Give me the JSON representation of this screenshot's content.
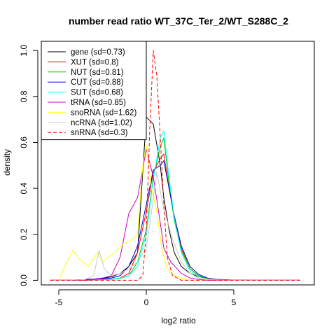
{
  "chart_data": {
    "type": "line",
    "title": "number read ratio WT_37C_Ter_2/WT_S288C_2",
    "xlabel": "log2 ratio",
    "ylabel": "density",
    "xlim": [
      -6,
      9.6
    ],
    "ylim": [
      -0.02,
      1.04
    ],
    "x_ticks": [
      -5,
      0,
      5
    ],
    "y_ticks": [
      0.0,
      0.2,
      0.4,
      0.6,
      0.8,
      1.0
    ],
    "x_tick_labels": [
      "-5",
      "0",
      "5"
    ],
    "y_tick_labels": [
      "0.0",
      "0.2",
      "0.4",
      "0.6",
      "0.8",
      "1.0"
    ],
    "legend_position": "top-left",
    "grid": false,
    "series": [
      {
        "name": "gene (sd=0.73)",
        "color": "#000000",
        "dash": "none",
        "x": [
          -5.5,
          -4.5,
          -3.5,
          -2.5,
          -2.0,
          -1.5,
          -1.0,
          -0.5,
          0.0,
          0.4,
          0.8,
          1.0,
          1.3,
          1.6,
          2.0,
          2.5,
          3.0,
          3.5,
          4.0,
          5.0,
          6.0,
          7.0,
          8.0,
          8.8
        ],
        "y": [
          0,
          0,
          0.003,
          0.008,
          0.015,
          0.03,
          0.06,
          0.12,
          0.71,
          0.68,
          0.5,
          0.36,
          0.22,
          0.12,
          0.06,
          0.03,
          0.015,
          0.008,
          0.004,
          0.001,
          0,
          0,
          0,
          0
        ]
      },
      {
        "name": "XUT (sd=0.8)",
        "color": "#ff0000",
        "dash": "none",
        "x": [
          -5.5,
          -4.5,
          -3.5,
          -2.5,
          -2.0,
          -1.5,
          -1.0,
          -0.5,
          0.0,
          0.4,
          0.8,
          1.0,
          1.3,
          1.6,
          2.0,
          2.5,
          3.0,
          3.5,
          4.0,
          5.0,
          6.0,
          7.0,
          8.0,
          8.8
        ],
        "y": [
          0,
          0,
          0,
          0.002,
          0.005,
          0.01,
          0.03,
          0.12,
          0.3,
          0.47,
          0.53,
          0.55,
          0.4,
          0.28,
          0.14,
          0.05,
          0.02,
          0.008,
          0.003,
          0.001,
          0,
          0,
          0,
          0
        ]
      },
      {
        "name": "NUT (sd=0.81)",
        "color": "#00cc00",
        "dash": "none",
        "x": [
          -5.5,
          -4.5,
          -3.5,
          -2.5,
          -2.0,
          -1.5,
          -1.0,
          -0.5,
          0.0,
          0.4,
          0.8,
          1.0,
          1.3,
          1.6,
          2.0,
          2.5,
          3.0,
          3.5,
          4.0,
          5.0,
          6.0,
          7.0,
          8.0,
          8.8
        ],
        "y": [
          0,
          0,
          0,
          0.002,
          0.004,
          0.008,
          0.02,
          0.08,
          0.22,
          0.45,
          0.58,
          0.62,
          0.42,
          0.26,
          0.13,
          0.05,
          0.02,
          0.008,
          0.003,
          0.001,
          0,
          0,
          0,
          0
        ]
      },
      {
        "name": "CUT (sd=0.88)",
        "color": "#0000cc",
        "dash": "none",
        "x": [
          -5.5,
          -4.5,
          -3.5,
          -2.5,
          -2.0,
          -1.5,
          -1.0,
          -0.5,
          0.0,
          0.4,
          0.8,
          1.0,
          1.3,
          1.6,
          2.0,
          2.5,
          3.0,
          3.5,
          4.0,
          5.0,
          6.0,
          7.0,
          8.0,
          8.8
        ],
        "y": [
          0,
          0,
          0.003,
          0.006,
          0.01,
          0.02,
          0.06,
          0.15,
          0.33,
          0.48,
          0.5,
          0.52,
          0.4,
          0.28,
          0.15,
          0.06,
          0.025,
          0.01,
          0.004,
          0.001,
          0,
          0,
          0,
          0
        ]
      },
      {
        "name": "SUT (sd=0.68)",
        "color": "#00ffff",
        "dash": "none",
        "x": [
          -5.5,
          -4.5,
          -3.5,
          -2.5,
          -2.0,
          -1.5,
          -1.0,
          -0.5,
          0.0,
          0.4,
          0.8,
          1.0,
          1.3,
          1.6,
          2.0,
          2.5,
          3.0,
          3.5,
          4.0,
          5.0,
          6.0,
          7.0,
          8.0,
          8.8
        ],
        "y": [
          0,
          0,
          0,
          0.002,
          0.005,
          0.01,
          0.02,
          0.06,
          0.2,
          0.44,
          0.62,
          0.65,
          0.45,
          0.27,
          0.12,
          0.04,
          0.015,
          0.005,
          0.002,
          0,
          0,
          0,
          0,
          0
        ]
      },
      {
        "name": "tRNA (sd=0.85)",
        "color": "#cc00cc",
        "dash": "none",
        "x": [
          -5.5,
          -4.5,
          -3.5,
          -3.0,
          -2.5,
          -2.0,
          -1.5,
          -1.0,
          -0.5,
          0.0,
          0.4,
          0.8,
          1.0,
          1.4,
          2.0,
          2.5,
          3.0,
          3.5,
          4.0,
          5.0,
          6.0,
          7.0,
          8.0,
          8.8
        ],
        "y": [
          0,
          0,
          0,
          0.005,
          0.01,
          0.02,
          0.1,
          0.29,
          0.36,
          0.57,
          0.45,
          0.25,
          0.14,
          0.08,
          0.03,
          0.01,
          0.004,
          0,
          0,
          0,
          0,
          0,
          0,
          0
        ]
      },
      {
        "name": "snoRNA (sd=1.62)",
        "color": "#ffff00",
        "dash": "none",
        "x": [
          -5.0,
          -4.6,
          -4.2,
          -3.8,
          -3.3,
          -2.8,
          -2.5,
          -2.2,
          -1.8,
          -1.3,
          -0.9,
          -0.5,
          -0.2,
          0.0,
          0.3,
          0.6,
          0.9,
          1.2,
          1.6,
          2.0,
          2.5,
          3.0
        ],
        "y": [
          0,
          0.07,
          0.13,
          0.09,
          0.06,
          0.12,
          0.08,
          0.1,
          0.12,
          0.16,
          0.17,
          0.2,
          0.5,
          0.59,
          0.4,
          0.3,
          0.13,
          0.05,
          0.02,
          0.008,
          0.002,
          0
        ]
      },
      {
        "name": "ncRNA (sd=1.02)",
        "color": "#c8c8c8",
        "dash": "none",
        "x": [
          -5.5,
          -4.5,
          -3.5,
          -3.0,
          -2.7,
          -2.4,
          -2.0,
          -1.5,
          -1.0,
          -0.5,
          0.0,
          0.3,
          0.6,
          1.0,
          1.5,
          2.0,
          2.5,
          3.0,
          4.0,
          5.0,
          6.0,
          7.0,
          8.0,
          8.8
        ],
        "y": [
          0,
          0,
          0.003,
          0.02,
          0.13,
          0.05,
          0.02,
          0.03,
          0.05,
          0.08,
          0.14,
          0.3,
          0.47,
          0.31,
          0.18,
          0.08,
          0.03,
          0.01,
          0.002,
          0,
          0,
          0,
          0,
          0
        ]
      },
      {
        "name": "snRNA (sd=0.3)",
        "color": "#ff0000",
        "dash": "5,3",
        "x": [
          -5.5,
          -4.0,
          -2.0,
          -1.0,
          -0.5,
          -0.2,
          0.0,
          0.2,
          0.4,
          0.6,
          0.8,
          1.0,
          1.2,
          1.5,
          2.0,
          3.0,
          4.0,
          5.0,
          6.0,
          7.0,
          8.0,
          8.8
        ],
        "y": [
          0,
          0,
          0,
          0,
          0,
          0.02,
          0.22,
          0.66,
          1.0,
          0.89,
          0.62,
          0.33,
          0.1,
          0.02,
          0,
          0,
          0,
          0,
          0,
          0,
          0,
          0
        ]
      }
    ]
  }
}
